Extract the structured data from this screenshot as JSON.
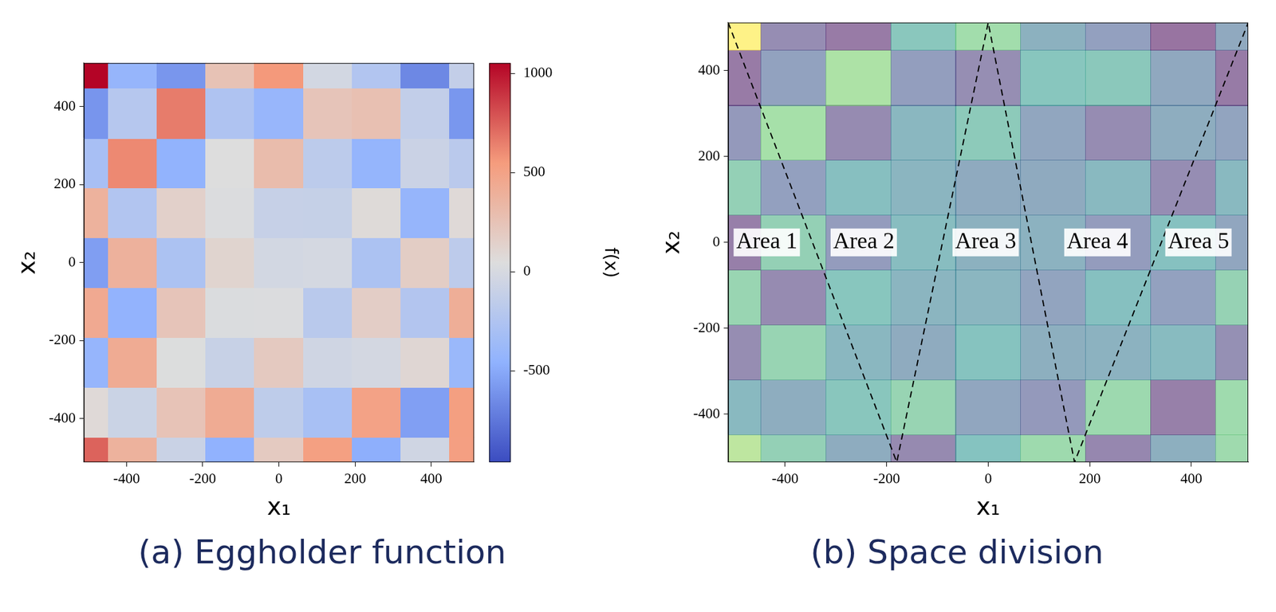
{
  "chart_data": [
    {
      "type": "heatmap",
      "title": "(a) Eggholder function",
      "x_label": "x₁",
      "y_label": "x₂",
      "x": [
        -512,
        -384,
        -256,
        -128,
        0,
        128,
        256,
        384,
        512
      ],
      "y": [
        -512,
        -384,
        -256,
        -128,
        0,
        128,
        256,
        384,
        512
      ],
      "z": [
        [
          737,
          381,
          -84,
          -453,
          193,
          519,
          -472,
          -47,
          522
        ],
        [
          78,
          -77,
          245,
          432,
          -159,
          -298,
          500,
          -549,
          528
        ],
        [
          -421,
          430,
          40,
          -99,
          198,
          -45,
          -20,
          96,
          -393
        ],
        [
          445,
          -440,
          235,
          28,
          33,
          -188,
          165,
          -232,
          410
        ],
        [
          -555,
          386,
          -273,
          118,
          -25,
          -11,
          -272,
          169,
          -165
        ],
        [
          379,
          -238,
          146,
          30,
          -108,
          -112,
          69,
          -417,
          77
        ],
        [
          -302,
          609,
          -442,
          47,
          301,
          -171,
          -425,
          -81,
          -184
        ],
        [
          -598,
          -210,
          654,
          -258,
          -406,
          236,
          272,
          -134,
          -591
        ],
        [
          1050,
          -419,
          -596,
          255,
          557,
          -25,
          -238,
          -665,
          -127
        ]
      ],
      "xlim": [
        -512,
        512
      ],
      "ylim": [
        -512,
        512
      ],
      "xticks": [
        -400,
        -200,
        0,
        200,
        400
      ],
      "yticks": [
        -400,
        -200,
        0,
        200,
        400
      ],
      "colorbar": {
        "label": "f(x)",
        "range": [
          -960,
          1050
        ],
        "ticks": [
          -500,
          0,
          500,
          1000
        ]
      },
      "grid": false
    },
    {
      "type": "contour",
      "title": "(b) Space division",
      "x_label": "x₁",
      "y_label": "x₂",
      "x": [
        -512,
        -384,
        -256,
        -128,
        0,
        128,
        256,
        384,
        512
      ],
      "y": [
        -512,
        -384,
        -256,
        -128,
        0,
        128,
        256,
        384,
        512
      ],
      "z": [
        [
          737,
          381,
          -84,
          -453,
          193,
          519,
          -472,
          -47,
          522
        ],
        [
          78,
          -77,
          245,
          432,
          -159,
          -298,
          500,
          -549,
          528
        ],
        [
          -421,
          430,
          40,
          -99,
          198,
          -45,
          -20,
          96,
          -393
        ],
        [
          445,
          -440,
          235,
          28,
          33,
          -188,
          165,
          -232,
          410
        ],
        [
          -555,
          386,
          -273,
          118,
          -25,
          -11,
          -272,
          169,
          -165
        ],
        [
          379,
          -238,
          146,
          30,
          -108,
          -112,
          69,
          -417,
          77
        ],
        [
          -302,
          609,
          -442,
          47,
          301,
          -171,
          -425,
          -81,
          -184
        ],
        [
          -598,
          -210,
          654,
          -258,
          -406,
          236,
          272,
          -134,
          -591
        ],
        [
          1050,
          -419,
          -596,
          255,
          557,
          -25,
          -238,
          -665,
          -127
        ]
      ],
      "series": [
        {
          "x": [
            -512,
            -180,
            0,
            170,
            512
          ],
          "values": [
            512,
            -512,
            512,
            -512,
            512
          ],
          "color": "#000000",
          "line_style": "dashed"
        }
      ],
      "annotations": [
        {
          "text": "Area 1",
          "x": -436,
          "y": 0
        },
        {
          "text": "Area 2",
          "x": -245,
          "y": 0
        },
        {
          "text": "Area 3",
          "x": -5,
          "y": 0
        },
        {
          "text": "Area 4",
          "x": 215,
          "y": 0
        },
        {
          "text": "Area 5",
          "x": 414,
          "y": 0
        }
      ],
      "xlim": [
        -512,
        512
      ],
      "ylim": [
        -512,
        512
      ],
      "xticks": [
        -400,
        -200,
        0,
        200,
        400
      ],
      "yticks": [
        -400,
        -200,
        0,
        200,
        400
      ],
      "grid": false
    }
  ]
}
